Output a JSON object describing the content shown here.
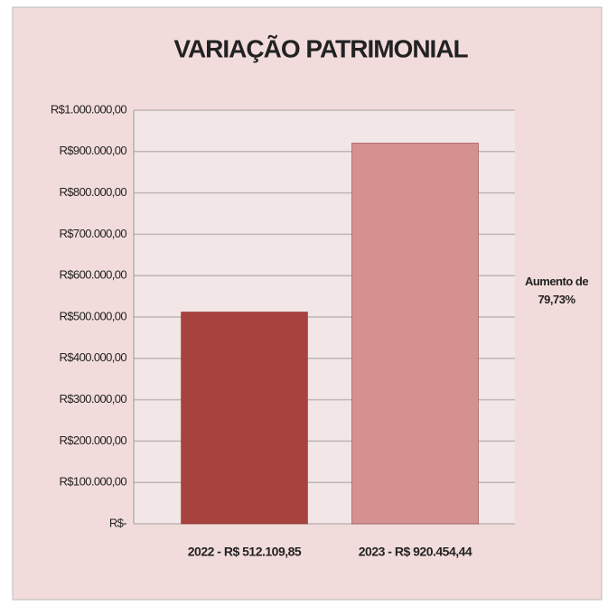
{
  "chart_data": {
    "type": "bar",
    "title": "VARIAÇÃO PATRIMONIAL",
    "categories": [
      "2022 - R$ 512.109,85",
      "2023 - R$ 920.454,44"
    ],
    "values": [
      512109.85,
      920454.44
    ],
    "colors": [
      "#a8423f",
      "#d49190"
    ],
    "ylim": [
      0,
      1000000
    ],
    "yticks": [
      {
        "value": 0,
        "label": "R$-"
      },
      {
        "value": 100000,
        "label": "R$100.000,00"
      },
      {
        "value": 200000,
        "label": "R$200.000,00"
      },
      {
        "value": 300000,
        "label": "R$300.000,00"
      },
      {
        "value": 400000,
        "label": "R$400.000,00"
      },
      {
        "value": 500000,
        "label": "R$500.000,00"
      },
      {
        "value": 600000,
        "label": "R$600.000,00"
      },
      {
        "value": 700000,
        "label": "R$700.000,00"
      },
      {
        "value": 800000,
        "label": "R$800.000,00"
      },
      {
        "value": 900000,
        "label": "R$900.000,00"
      },
      {
        "value": 1000000,
        "label": "R$1.000.000,00"
      }
    ],
    "grid": true,
    "annotation": "Aumento de 79,73%"
  }
}
